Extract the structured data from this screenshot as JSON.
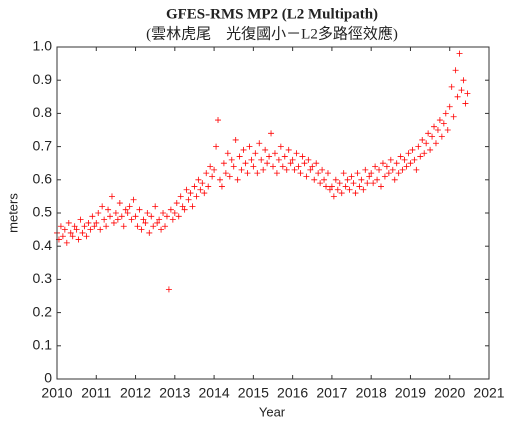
{
  "chart_data": {
    "type": "scatter",
    "title": "GFES-RMS MP2 (L2 Multipath)",
    "subtitle": "(雲林虎尾　光復國小－L2多路徑效應)",
    "x_label": "Year",
    "y_label": "meters",
    "color": "#ff0000",
    "marker": "+",
    "xlim": [
      2010,
      2021
    ],
    "xticks": [
      2010,
      2011,
      2012,
      2013,
      2014,
      2015,
      2016,
      2017,
      2018,
      2019,
      2020,
      2021
    ],
    "ylim": [
      0,
      1
    ],
    "yticks": [
      0,
      0.1,
      0.2,
      0.3,
      0.4,
      0.5,
      0.6,
      0.7,
      0.8,
      0.9,
      {
        "value": 1,
        "label": "1.0"
      }
    ],
    "x": [
      2010,
      2010.05,
      2010.1,
      2010.15,
      2010.2,
      2010.25,
      2010.3,
      2010.35,
      2010.4,
      2010.45,
      2010.5,
      2010.55,
      2010.6,
      2010.65,
      2010.7,
      2010.75,
      2010.8,
      2010.85,
      2010.9,
      2010.95,
      2011,
      2011.05,
      2011.1,
      2011.15,
      2011.2,
      2011.25,
      2011.3,
      2011.35,
      2011.4,
      2011.45,
      2011.5,
      2011.55,
      2011.6,
      2011.65,
      2011.7,
      2011.75,
      2011.8,
      2011.85,
      2011.9,
      2011.95,
      2012,
      2012.05,
      2012.1,
      2012.15,
      2012.2,
      2012.25,
      2012.3,
      2012.35,
      2012.4,
      2012.45,
      2012.5,
      2012.55,
      2012.6,
      2012.65,
      2012.7,
      2012.75,
      2012.8,
      2012.85,
      2012.9,
      2012.95,
      2013,
      2013.05,
      2013.1,
      2013.15,
      2013.2,
      2013.25,
      2013.3,
      2013.35,
      2013.4,
      2013.45,
      2013.5,
      2013.55,
      2013.6,
      2013.65,
      2013.7,
      2013.75,
      2013.8,
      2013.85,
      2013.9,
      2013.95,
      2014,
      2014.05,
      2014.1,
      2014.15,
      2014.2,
      2014.25,
      2014.3,
      2014.35,
      2014.4,
      2014.45,
      2014.5,
      2014.55,
      2014.6,
      2014.65,
      2014.7,
      2014.75,
      2014.8,
      2014.85,
      2014.9,
      2014.95,
      2015,
      2015.05,
      2015.1,
      2015.15,
      2015.2,
      2015.25,
      2015.3,
      2015.35,
      2015.4,
      2015.45,
      2015.5,
      2015.55,
      2015.6,
      2015.65,
      2015.7,
      2015.75,
      2015.8,
      2015.85,
      2015.9,
      2015.95,
      2016,
      2016.05,
      2016.1,
      2016.15,
      2016.2,
      2016.25,
      2016.3,
      2016.35,
      2016.4,
      2016.45,
      2016.5,
      2016.55,
      2016.6,
      2016.65,
      2016.7,
      2016.75,
      2016.8,
      2016.85,
      2016.9,
      2016.95,
      2017,
      2017.05,
      2017.1,
      2017.15,
      2017.2,
      2017.25,
      2017.3,
      2017.35,
      2017.4,
      2017.45,
      2017.5,
      2017.55,
      2017.6,
      2017.65,
      2017.7,
      2017.75,
      2017.8,
      2017.85,
      2017.9,
      2017.95,
      2018,
      2018.05,
      2018.1,
      2018.15,
      2018.2,
      2018.25,
      2018.3,
      2018.35,
      2018.4,
      2018.45,
      2018.5,
      2018.55,
      2018.6,
      2018.65,
      2018.7,
      2018.75,
      2018.8,
      2018.85,
      2018.9,
      2018.95,
      2019,
      2019.05,
      2019.1,
      2019.15,
      2019.2,
      2019.25,
      2019.3,
      2019.35,
      2019.4,
      2019.45,
      2019.5,
      2019.55,
      2019.6,
      2019.65,
      2019.7,
      2019.75,
      2019.8,
      2019.85,
      2019.9,
      2019.95,
      2020,
      2020.05,
      2020.1,
      2020.15,
      2020.2,
      2020.25,
      2020.3,
      2020.35,
      2020.4,
      2020.45
    ],
    "values": [
      0.44,
      0.42,
      0.46,
      0.43,
      0.45,
      0.41,
      0.47,
      0.44,
      0.43,
      0.46,
      0.45,
      0.42,
      0.48,
      0.44,
      0.46,
      0.43,
      0.47,
      0.45,
      0.49,
      0.46,
      0.47,
      0.5,
      0.45,
      0.52,
      0.48,
      0.46,
      0.51,
      0.49,
      0.55,
      0.47,
      0.5,
      0.48,
      0.53,
      0.49,
      0.46,
      0.51,
      0.5,
      0.52,
      0.48,
      0.54,
      0.49,
      0.46,
      0.51,
      0.45,
      0.48,
      0.47,
      0.5,
      0.44,
      0.49,
      0.46,
      0.52,
      0.47,
      0.48,
      0.45,
      0.5,
      0.46,
      0.49,
      0.27,
      0.51,
      0.48,
      0.5,
      0.53,
      0.49,
      0.55,
      0.52,
      0.51,
      0.57,
      0.54,
      0.56,
      0.52,
      0.58,
      0.55,
      0.6,
      0.57,
      0.59,
      0.56,
      0.62,
      0.58,
      0.64,
      0.61,
      0.63,
      0.7,
      0.78,
      0.6,
      0.58,
      0.65,
      0.62,
      0.68,
      0.61,
      0.66,
      0.64,
      0.72,
      0.6,
      0.67,
      0.63,
      0.69,
      0.65,
      0.62,
      0.7,
      0.66,
      0.64,
      0.68,
      0.62,
      0.71,
      0.66,
      0.63,
      0.69,
      0.65,
      0.67,
      0.74,
      0.64,
      0.68,
      0.62,
      0.66,
      0.7,
      0.64,
      0.67,
      0.63,
      0.69,
      0.65,
      0.66,
      0.63,
      0.68,
      0.64,
      0.62,
      0.67,
      0.65,
      0.61,
      0.66,
      0.63,
      0.64,
      0.6,
      0.65,
      0.62,
      0.59,
      0.63,
      0.6,
      0.58,
      0.62,
      0.57,
      0.58,
      0.55,
      0.6,
      0.57,
      0.59,
      0.56,
      0.62,
      0.58,
      0.6,
      0.57,
      0.61,
      0.59,
      0.56,
      0.62,
      0.58,
      0.6,
      0.57,
      0.63,
      0.59,
      0.61,
      0.62,
      0.59,
      0.64,
      0.6,
      0.63,
      0.58,
      0.65,
      0.61,
      0.64,
      0.62,
      0.66,
      0.63,
      0.6,
      0.65,
      0.62,
      0.67,
      0.63,
      0.66,
      0.64,
      0.68,
      0.65,
      0.69,
      0.66,
      0.63,
      0.7,
      0.67,
      0.72,
      0.68,
      0.71,
      0.74,
      0.69,
      0.73,
      0.76,
      0.71,
      0.75,
      0.78,
      0.73,
      0.77,
      0.8,
      0.75,
      0.82,
      0.88,
      0.79,
      0.93,
      0.85,
      0.98,
      0.87,
      0.9,
      0.83,
      0.86
    ]
  }
}
